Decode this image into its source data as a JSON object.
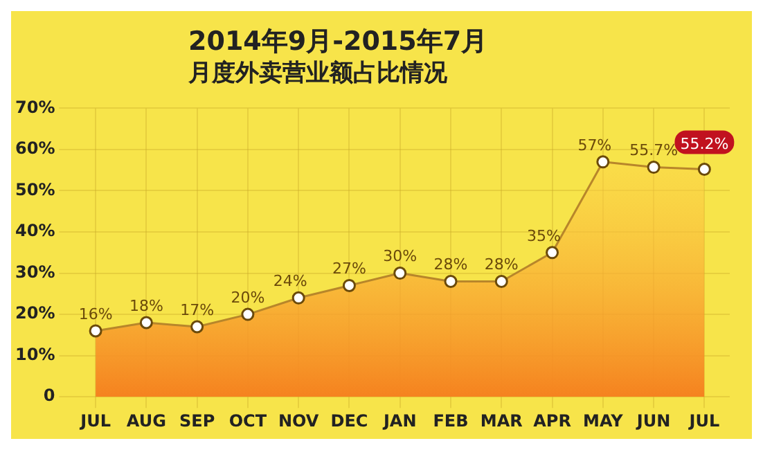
{
  "chart_data": {
    "type": "area",
    "title": "2014年9月-2015年7月",
    "subtitle": "月度外卖营业额占比情况",
    "categories": [
      "JUL",
      "AUG",
      "SEP",
      "OCT",
      "NOV",
      "DEC",
      "JAN",
      "FEB",
      "MAR",
      "APR",
      "MAY",
      "JUN",
      "JUL"
    ],
    "series": [
      {
        "color": "#f5821f",
        "values": [
          16,
          18,
          17,
          20,
          24,
          27,
          30,
          28,
          28,
          35,
          57,
          55.7,
          55.2
        ],
        "value_labels": [
          "16%",
          "18%",
          "17%",
          "20%",
          "24%",
          "27%",
          "30%",
          "28%",
          "28%",
          "35%",
          "57%",
          "55.7%",
          "55.2%"
        ]
      }
    ],
    "ylim": [
      0,
      70
    ],
    "yticks": [
      {
        "value": 0,
        "label": "0"
      },
      {
        "value": 10,
        "label": "10%"
      },
      {
        "value": 20,
        "label": "20%"
      },
      {
        "value": 30,
        "label": "30%"
      },
      {
        "value": 40,
        "label": "40%"
      },
      {
        "value": 50,
        "label": "50%"
      },
      {
        "value": 60,
        "label": "60%"
      },
      {
        "value": 70,
        "label": "70%"
      }
    ],
    "grid": true,
    "marker": "circle"
  }
}
